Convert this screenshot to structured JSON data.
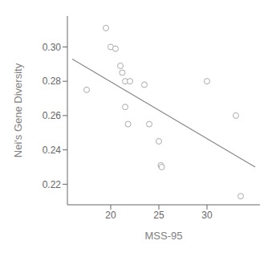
{
  "chart_data": {
    "type": "scatter",
    "xlabel": "MSS-95",
    "ylabel": "Nei's Gene Diversity",
    "series": [
      {
        "type": "scatter",
        "x": [
          17.5,
          19.5,
          20.0,
          20.5,
          21.0,
          21.2,
          21.5,
          21.5,
          21.8,
          22.0,
          23.5,
          24.0,
          25.0,
          25.2,
          25.3,
          30.0,
          33.0,
          33.5
        ],
        "values": [
          0.275,
          0.311,
          0.3,
          0.299,
          0.289,
          0.285,
          0.28,
          0.265,
          0.255,
          0.28,
          0.278,
          0.255,
          0.245,
          0.231,
          0.23,
          0.28,
          0.26,
          0.213
        ],
        "color": "#aaaaaa",
        "marker": "open"
      },
      {
        "type": "line",
        "x": [
          16.0,
          35.0
        ],
        "values": [
          0.293,
          0.23
        ],
        "color": "#888888"
      }
    ],
    "xlim": [
      15.5,
      35.5
    ],
    "ylim": [
      0.208,
      0.318
    ],
    "xticks": [
      20,
      25,
      30
    ],
    "yticks": [
      0.22,
      0.24,
      0.26,
      0.28,
      {
        "value": 0.3,
        "label": "0.30"
      }
    ],
    "grid": false
  }
}
